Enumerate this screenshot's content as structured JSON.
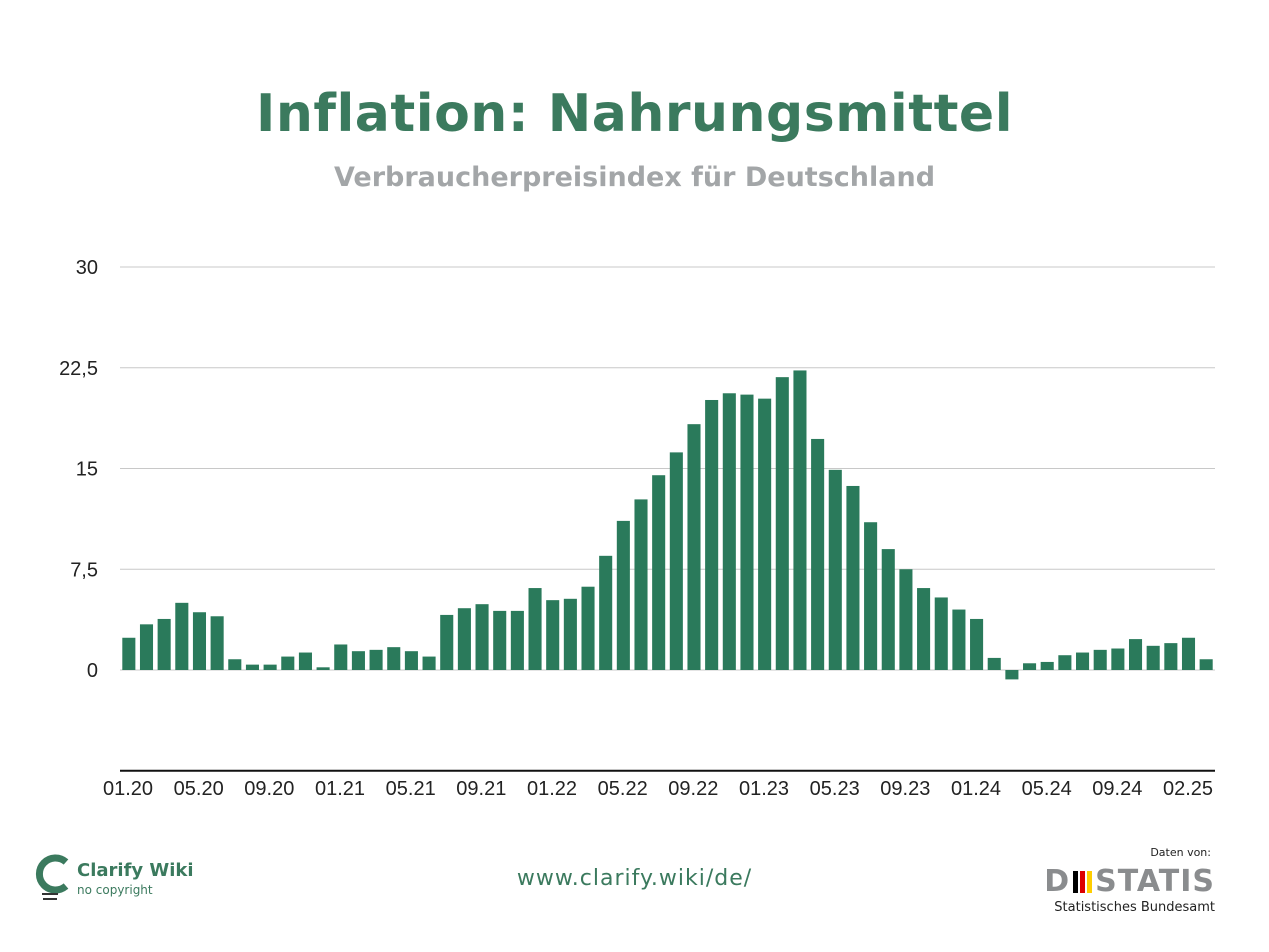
{
  "header": {
    "title": "Inflation: Nahrungsmittel",
    "subtitle": "Verbraucherpreisindex für Deutschland"
  },
  "footer": {
    "url": "www.clarify.wiki/de/",
    "brand_name": "Clarify Wiki",
    "brand_sub": "no copyright",
    "source_label": "Daten von:",
    "source_name_left": "D",
    "source_name_right": "STATIS",
    "source_sub": "Statistisches Bundesamt"
  },
  "colors": {
    "bar": "#2a7a5b",
    "title": "#3b7a5e",
    "subtitle": "#a3a6a8",
    "grid": "#c8c8c8",
    "flag": [
      "#000000",
      "#dd0000",
      "#ffce00"
    ]
  },
  "chart_data": {
    "type": "bar",
    "title": "Inflation: Nahrungsmittel",
    "subtitle": "Verbraucherpreisindex für Deutschland",
    "xlabel": "",
    "ylabel": "",
    "ylim": [
      -7.5,
      30
    ],
    "yticks": [
      30,
      22.5,
      15,
      7.5,
      0
    ],
    "ytick_labels": [
      "30",
      "22,5",
      "15",
      "7,5",
      "0"
    ],
    "grid": true,
    "legend": "none",
    "xtick_labels": [
      "01.20",
      "05.20",
      "09.20",
      "01.21",
      "05.21",
      "09.21",
      "01.22",
      "05.22",
      "09.22",
      "01.23",
      "05.23",
      "09.23",
      "01.24",
      "05.24",
      "09.24",
      "02.25"
    ],
    "categories": [
      "01.20",
      "02.20",
      "03.20",
      "04.20",
      "05.20",
      "06.20",
      "07.20",
      "08.20",
      "09.20",
      "10.20",
      "11.20",
      "12.20",
      "01.21",
      "02.21",
      "03.21",
      "04.21",
      "05.21",
      "06.21",
      "07.21",
      "08.21",
      "09.21",
      "10.21",
      "11.21",
      "12.21",
      "01.22",
      "02.22",
      "03.22",
      "04.22",
      "05.22",
      "06.22",
      "07.22",
      "08.22",
      "09.22",
      "10.22",
      "11.22",
      "12.22",
      "01.23",
      "02.23",
      "03.23",
      "04.23",
      "05.23",
      "06.23",
      "07.23",
      "08.23",
      "09.23",
      "10.23",
      "11.23",
      "12.23",
      "01.24",
      "02.24",
      "03.24",
      "04.24",
      "05.24",
      "06.24",
      "07.24",
      "08.24",
      "09.24",
      "10.24",
      "11.24",
      "12.24",
      "01.25",
      "02.25"
    ],
    "values": [
      2.4,
      3.4,
      3.8,
      5.0,
      4.3,
      4.0,
      0.8,
      0.4,
      0.4,
      1.0,
      1.3,
      0.2,
      1.9,
      1.4,
      1.5,
      1.7,
      1.4,
      1.0,
      4.1,
      4.6,
      4.9,
      4.4,
      4.4,
      6.1,
      5.2,
      5.3,
      6.2,
      8.5,
      11.1,
      12.7,
      14.5,
      16.2,
      18.3,
      20.1,
      20.6,
      20.5,
      20.2,
      21.8,
      22.3,
      17.2,
      14.9,
      13.7,
      11.0,
      9.0,
      7.5,
      6.1,
      5.4,
      4.5,
      3.8,
      0.9,
      -0.7,
      0.5,
      0.6,
      1.1,
      1.3,
      1.5,
      1.6,
      2.3,
      1.8,
      2.0,
      2.4,
      0.8
    ]
  }
}
